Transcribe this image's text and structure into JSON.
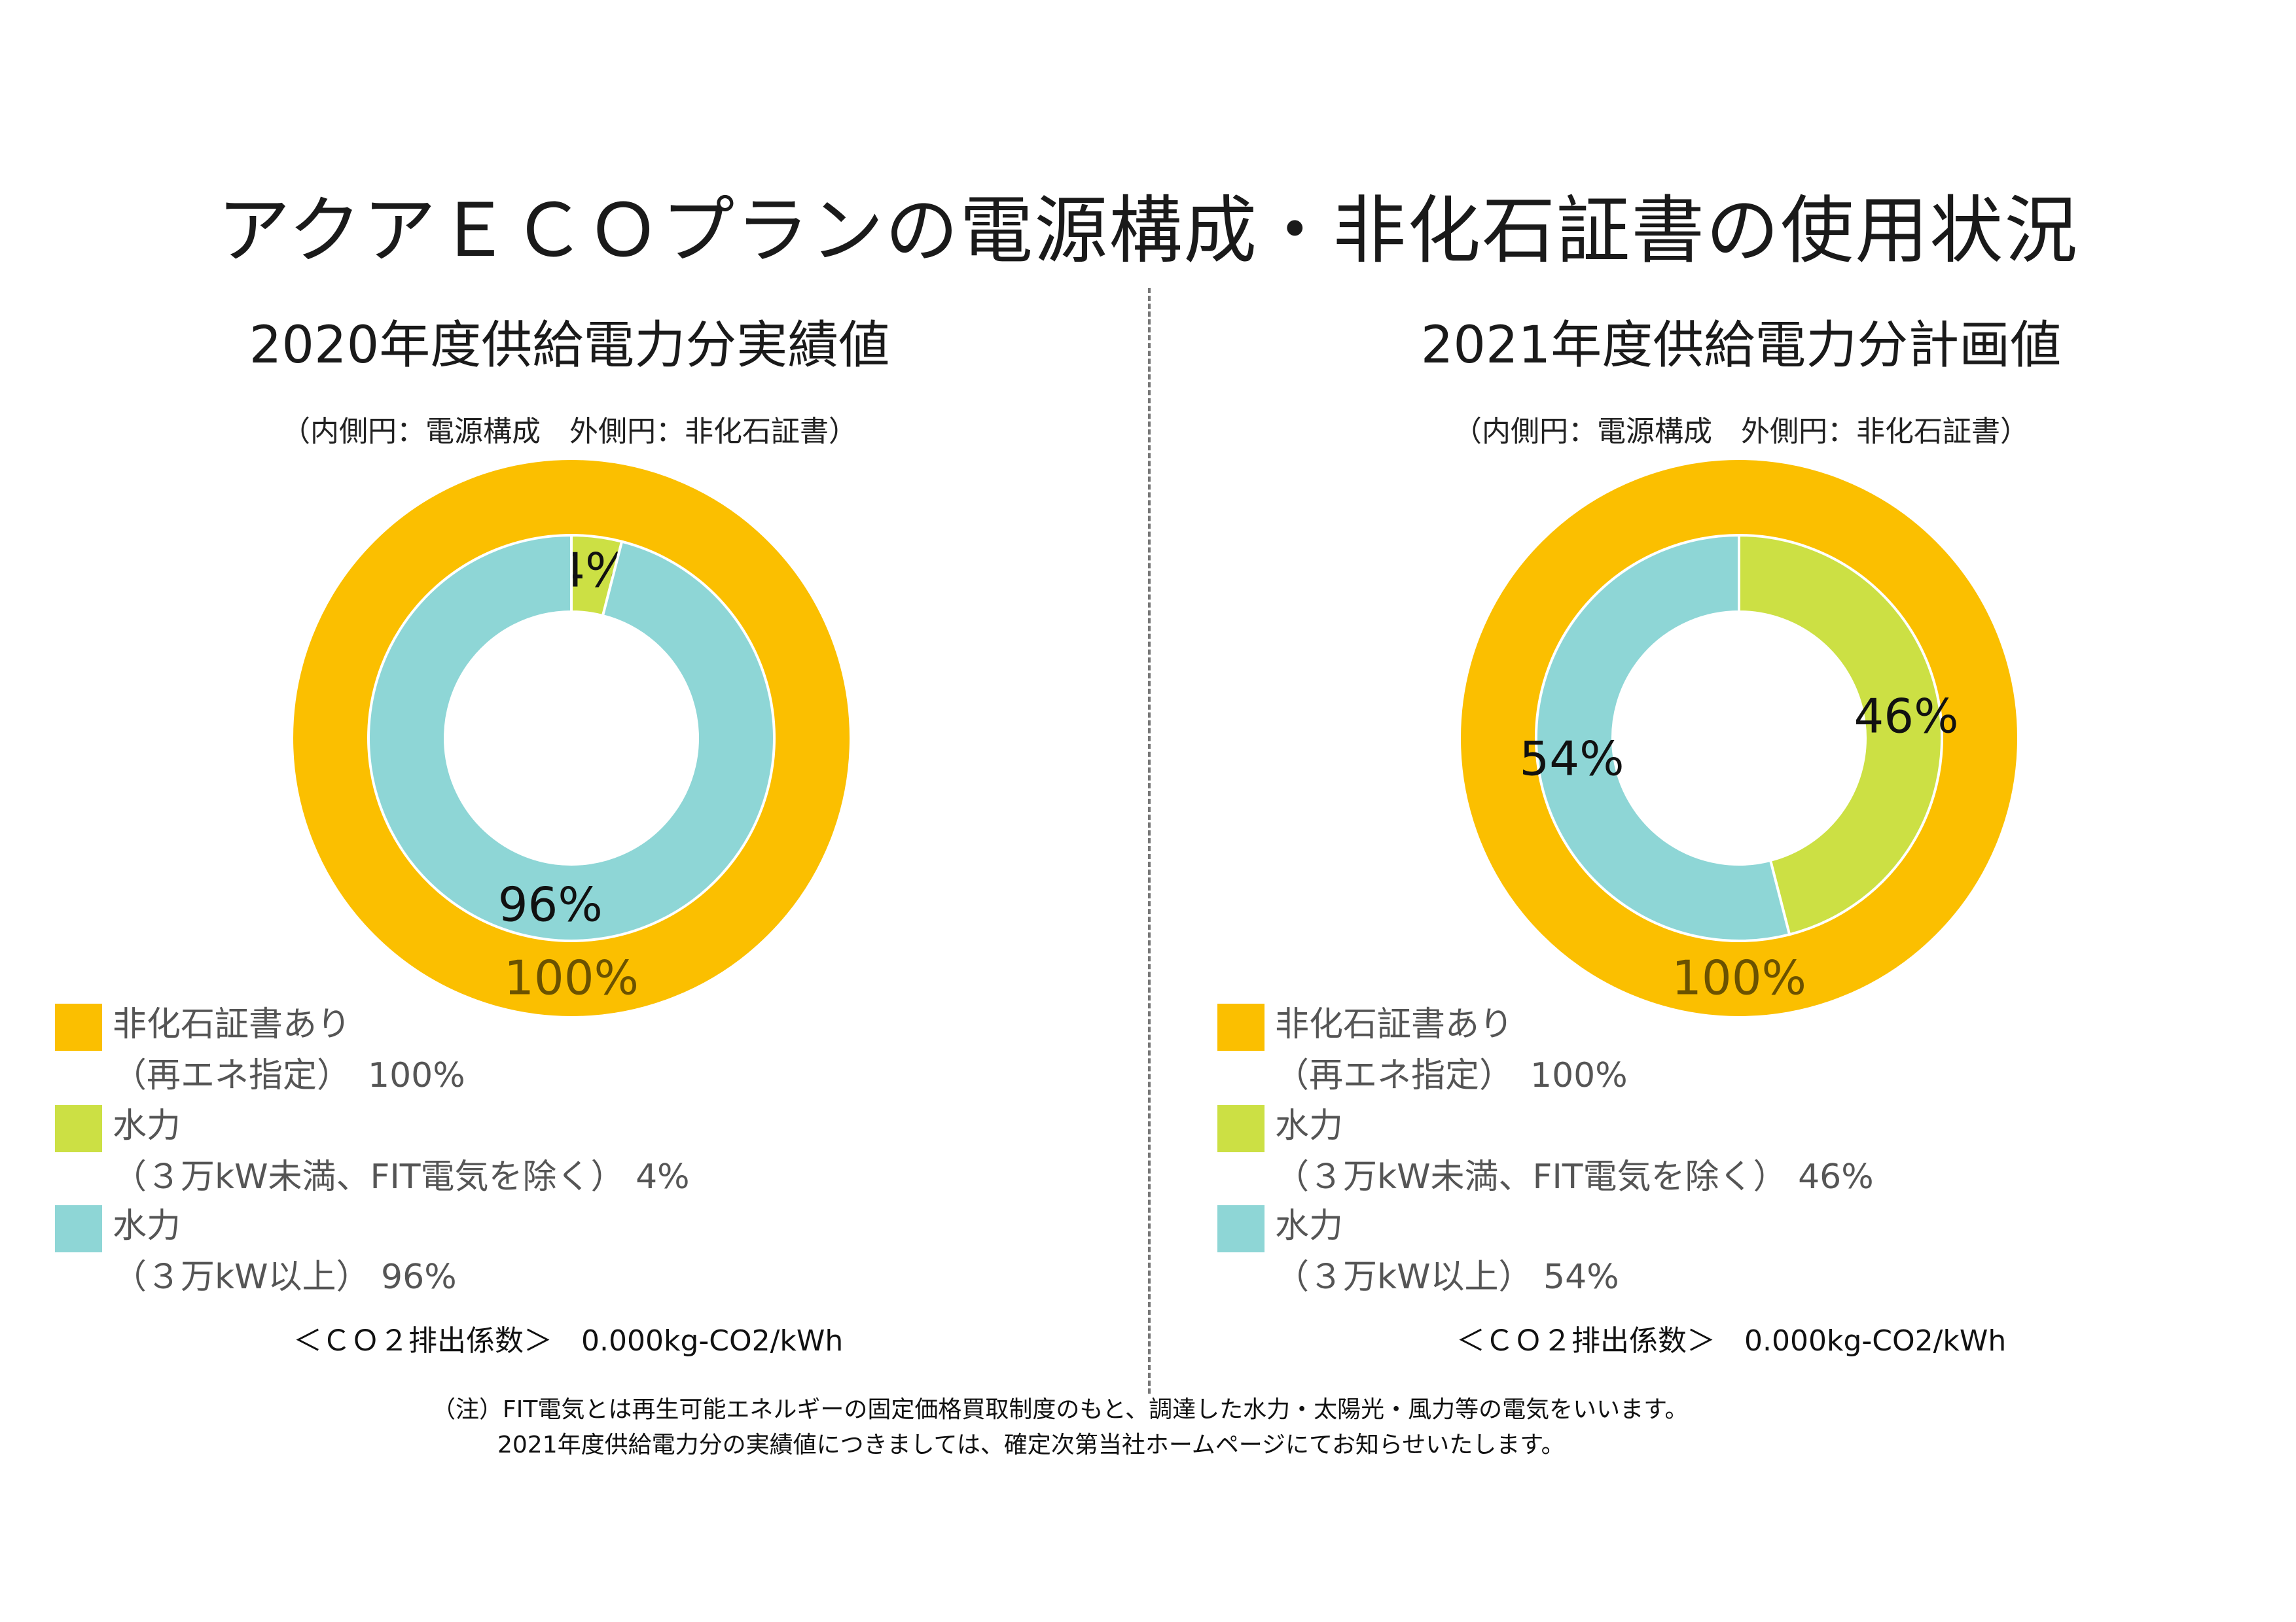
{
  "title": "アクアＥＣＯプランの電源構成・非化石証書の使用状況",
  "colors": {
    "non_fossil": "#FBBF00",
    "hydro_small": "#CCE044",
    "hydro_large": "#8ED6D6"
  },
  "chart_data": [
    {
      "type": "pie",
      "title": "2020年度供給電力分実績値",
      "subtitle": "（内側円：電源構成　外側円：非化石証書）",
      "outer_ring": {
        "name": "非化石証書あり（再エネ指定）",
        "value": 100,
        "label": "100%"
      },
      "inner_ring": [
        {
          "name": "水力（３万kW未満、FIT電気を除く）",
          "value": 4,
          "label": "4%"
        },
        {
          "name": "水力（３万kW以上）",
          "value": 96,
          "label": "96%"
        }
      ],
      "legend": [
        {
          "line1": "非化石証書あり",
          "line2": "（再エネ指定）　100%",
          "color": "#FBBF00"
        },
        {
          "line1": "水力",
          "line2": "（３万kW未満、FIT電気を除く）  4%",
          "color": "#CCE044"
        },
        {
          "line1": "水力",
          "line2": "（３万kW以上）  96%",
          "color": "#8ED6D6"
        }
      ],
      "co2": "＜ＣＯ２排出係数＞　0.000kg-CO2/kWh"
    },
    {
      "type": "pie",
      "title": "2021年度供給電力分計画値",
      "subtitle": "（内側円：電源構成　外側円：非化石証書）",
      "outer_ring": {
        "name": "非化石証書あり（再エネ指定）",
        "value": 100,
        "label": "100%"
      },
      "inner_ring": [
        {
          "name": "水力（３万kW未満、FIT電気を除く）",
          "value": 46,
          "label": "46%"
        },
        {
          "name": "水力（３万kW以上）",
          "value": 54,
          "label": "54%"
        }
      ],
      "legend": [
        {
          "line1": "非化石証書あり",
          "line2": "（再エネ指定）　100%",
          "color": "#FBBF00"
        },
        {
          "line1": "水力",
          "line2": "（３万kW未満、FIT電気を除く）  46%",
          "color": "#CCE044"
        },
        {
          "line1": "水力",
          "line2": "（３万kW以上）  54%",
          "color": "#8ED6D6"
        }
      ],
      "co2": "＜ＣＯ２排出係数＞　0.000kg-CO2/kWh"
    }
  ],
  "note": {
    "line1": "（注）FIT電気とは再生可能エネルギーの固定価格買取制度のもと、調達した水力・太陽光・風力等の電気をいいます。",
    "line2": "2021年度供給電力分の実績値につきましては、確定次第当社ホームページにてお知らせいたします。"
  }
}
